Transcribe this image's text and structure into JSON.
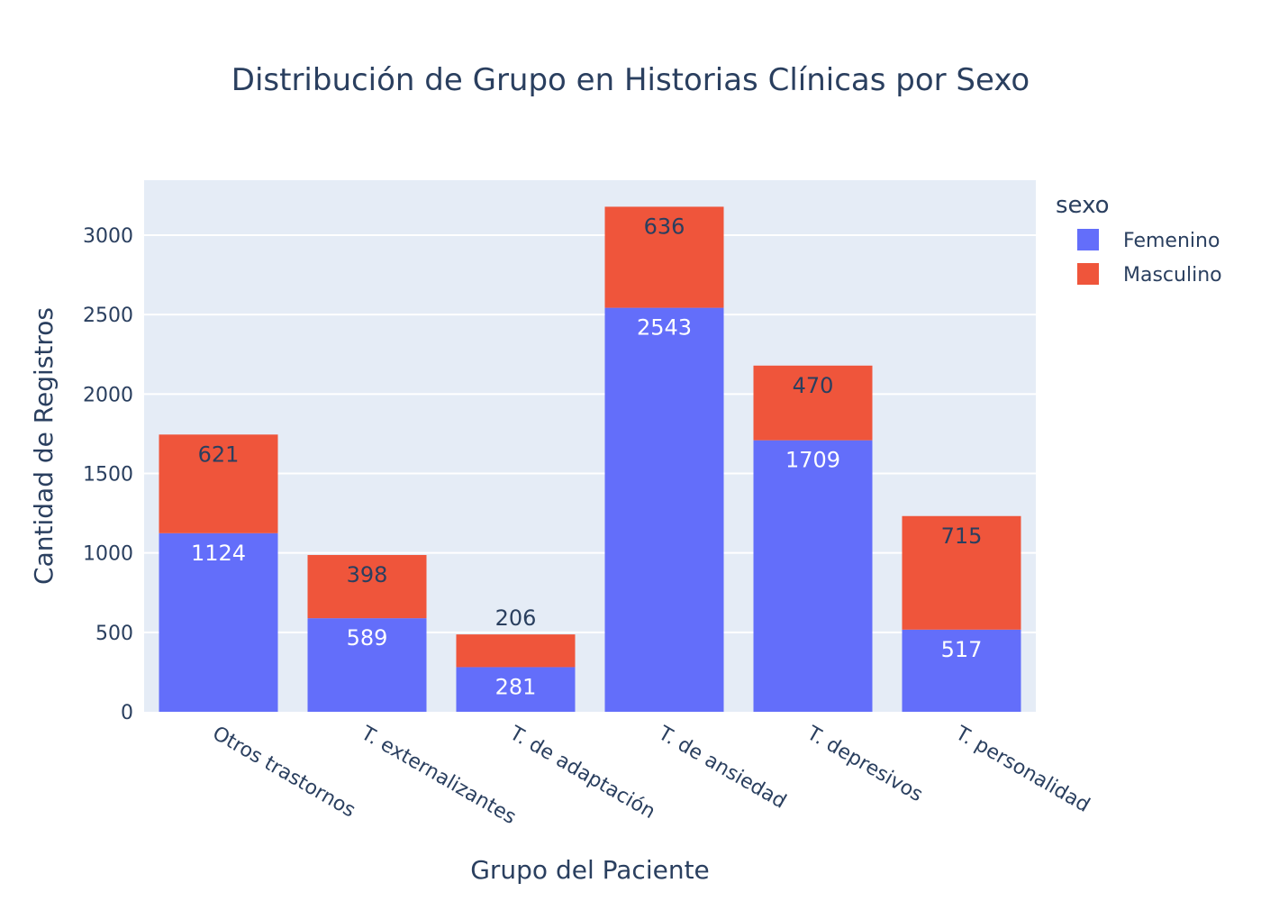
{
  "chart_data": {
    "type": "bar",
    "barmode": "stack",
    "title": "Distribución de Grupo en Historias Clínicas por Sexo",
    "xlabel": "Grupo del Paciente",
    "ylabel": "Cantidad de Registros",
    "categories": [
      "Otros trastornos",
      "T. externalizantes",
      "T. de adaptación",
      "T. de ansiedad",
      "T. depresivos",
      "T. personalidad"
    ],
    "series": [
      {
        "name": "Femenino",
        "values": [
          1124,
          589,
          281,
          2543,
          1709,
          517
        ],
        "color": "#636efa"
      },
      {
        "name": "Masculino",
        "values": [
          621,
          398,
          206,
          636,
          470,
          715
        ],
        "color": "#ef553b"
      }
    ],
    "ylim": [
      0,
      3346
    ],
    "yticks": [
      0,
      500,
      1000,
      1500,
      2000,
      2500,
      3000
    ],
    "grid": true,
    "legend": {
      "title": "sexo",
      "placement": "top-right"
    },
    "plot_bg": "#e5ecf6",
    "text_color": "#2a3f5f"
  }
}
